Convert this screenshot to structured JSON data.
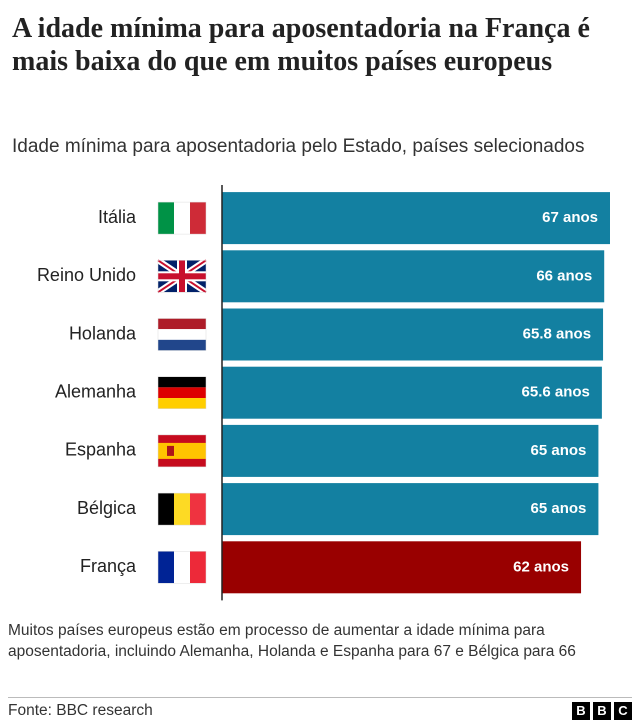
{
  "chart_data": {
    "type": "bar",
    "title": "A idade mínima para aposentadoria na França é mais baixa do que em muitos países europeus",
    "subtitle": "Idade mínima para aposentadoria pelo Estado, países selecionados",
    "categories": [
      "Itália",
      "Reino Unido",
      "Holanda",
      "Alemanha",
      "Espanha",
      "Bélgica",
      "França"
    ],
    "values": [
      67,
      66,
      65.8,
      65.6,
      65,
      65,
      62
    ],
    "value_labels": [
      "67 anos",
      "66 anos",
      "65.8 anos",
      "65.6 anos",
      "65 anos",
      "65 anos",
      "62 anos"
    ],
    "colors": [
      "#1380a1",
      "#1380a1",
      "#1380a1",
      "#1380a1",
      "#1380a1",
      "#1380a1",
      "#990000"
    ],
    "note": "Muitos países europeus estão em processo de aumentar a idade mínima para aposentadoria, incluindo Alemanha, Holanda e Espanha para 67 e Bélgica para 66",
    "source": "Fonte: BBC research",
    "logo": [
      "B",
      "B",
      "C"
    ]
  }
}
